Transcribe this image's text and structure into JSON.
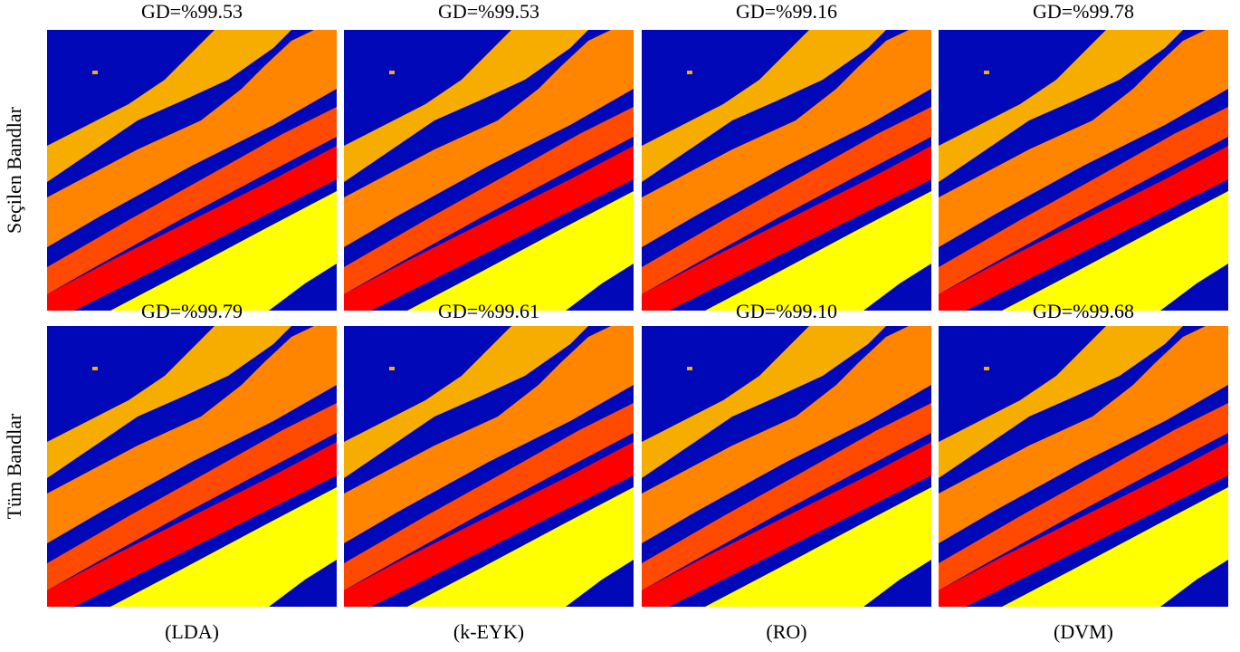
{
  "row_labels": [
    "Seçilen Bandlar",
    "Tüm Bandlar"
  ],
  "column_labels": [
    "(LDA)",
    "(k-EYK)",
    "(RO)",
    "(DVM)"
  ],
  "panels": [
    [
      "GD=%99.53",
      "GD=%99.53",
      "GD=%99.16",
      "GD=%99.78"
    ],
    [
      "GD=%99.79",
      "GD=%99.61",
      "GD=%99.10",
      "GD=%99.68"
    ]
  ]
}
